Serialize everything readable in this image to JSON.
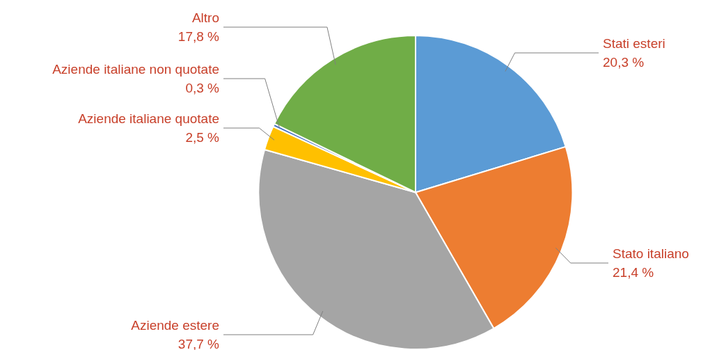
{
  "chart_data": {
    "type": "pie",
    "categories": [
      "Stati esteri",
      "Stato italiano",
      "Aziende estere",
      "Aziende italiane quotate",
      "Aziende italiane non quotate",
      "Altro"
    ],
    "values": [
      20.3,
      21.4,
      37.7,
      2.5,
      0.3,
      17.8
    ],
    "colors": [
      "#5b9bd5",
      "#ed7d31",
      "#a5a5a5",
      "#ffc000",
      "#4472c4",
      "#70ad47"
    ],
    "value_labels": [
      "20,3 %",
      "21,4 %",
      "37,7 %",
      "2,5 %",
      "0,3 %",
      "17,8 %"
    ],
    "legend": false
  }
}
